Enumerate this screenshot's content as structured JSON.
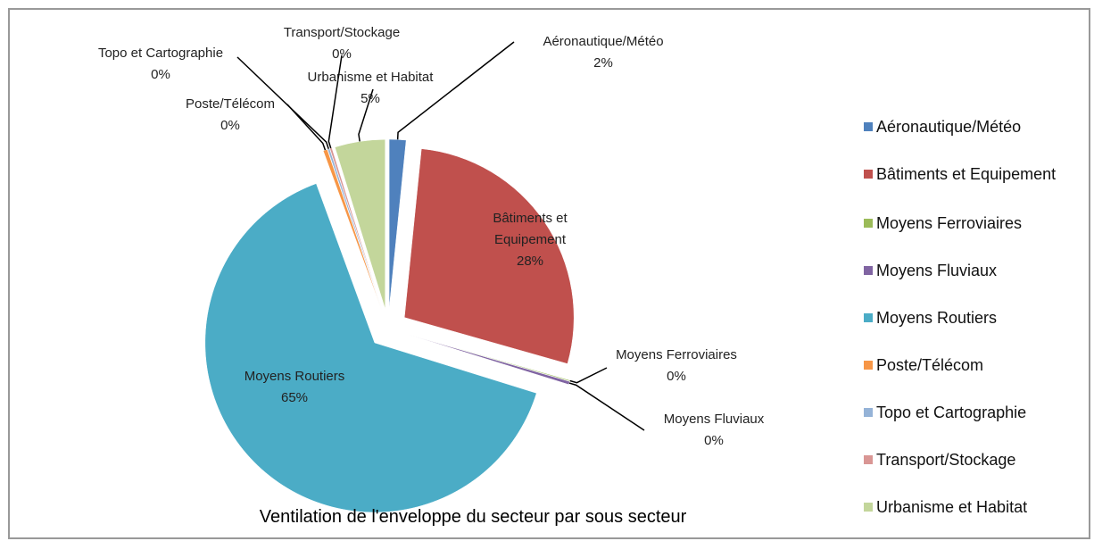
{
  "chart_data": {
    "type": "pie",
    "title": "Ventilation de l'enveloppe du secteur par sous secteur",
    "categories": [
      "Aéronautique/Météo",
      "Bâtiments et Equipement",
      "Moyens Ferroviaires",
      "Moyens Fluviaux",
      "Moyens Routiers",
      "Poste/Télécom",
      "Topo et Cartographie",
      "Transport/Stockage",
      "Urbanisme et Habitat"
    ],
    "values": [
      1.6,
      27.8,
      0.1,
      0.3,
      64.6,
      0.4,
      0.2,
      0.2,
      4.8
    ],
    "value_labels": [
      "2%",
      "28%",
      "0%",
      "0%",
      "65%",
      "0%",
      "0%",
      "0%",
      "5%"
    ],
    "colors": [
      "#4f81bd",
      "#c0504d",
      "#9bbb59",
      "#8064a2",
      "#4bacc6",
      "#f79646",
      "#95b3d7",
      "#d99694",
      "#c3d69b"
    ],
    "legend": "right"
  }
}
